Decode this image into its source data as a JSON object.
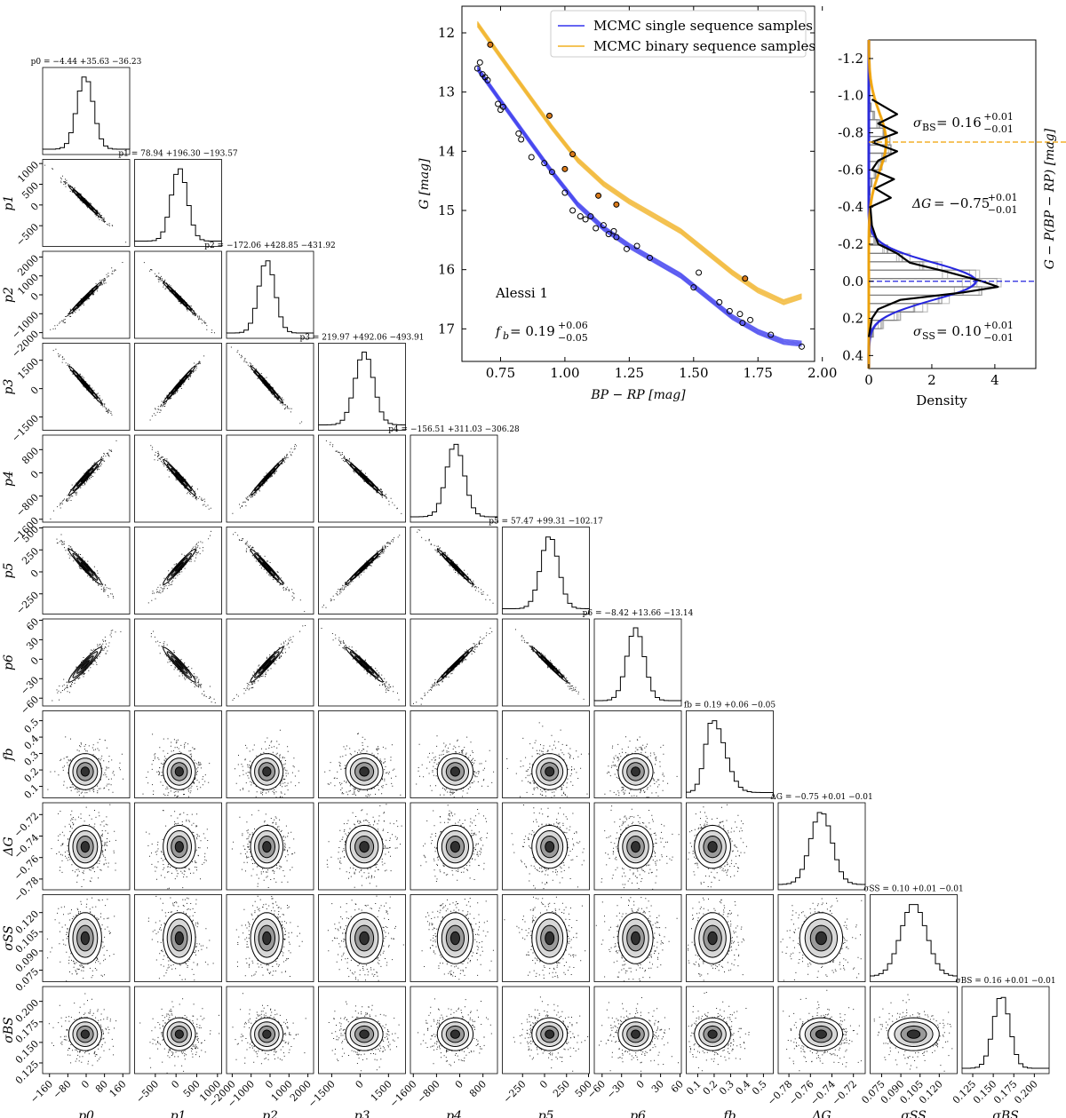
{
  "chart_data": [
    {
      "type": "corner",
      "description_title": "Posterior corner plot",
      "parameters": [
        {
          "key": "p0",
          "label": "p0",
          "title": "p0 = −4.44 +35.63 −36.23",
          "median": -4.44,
          "err_plus": 35.63,
          "err_minus": 36.23,
          "range": [
            -190,
            190
          ],
          "ticks": [
            -160,
            -80,
            0,
            80,
            160
          ],
          "tick_labels": [
            "−160",
            "−80",
            "0",
            "80",
            "160"
          ]
        },
        {
          "key": "p1",
          "label": "p1",
          "title": "p1 = 78.94 +196.30 −193.57",
          "median": 78.94,
          "err_plus": 196.3,
          "err_minus": 193.57,
          "range": [
            -1000,
            1100
          ],
          "ticks": [
            -500,
            0,
            500,
            1000
          ],
          "tick_labels": [
            "−500",
            "0",
            "500",
            "1000"
          ]
        },
        {
          "key": "p2",
          "label": "p2",
          "title": "p2 = −172.06 +428.85 −431.92",
          "median": -172.06,
          "err_plus": 428.85,
          "err_minus": 431.92,
          "range": [
            -2300,
            2300
          ],
          "ticks": [
            -2000,
            -1000,
            0,
            1000,
            2000
          ],
          "tick_labels": [
            "−2000",
            "−1000",
            "0",
            "1000",
            "2000"
          ]
        },
        {
          "key": "p3",
          "label": "p3",
          "title": "p3 = 219.97 +492.06 −493.91",
          "median": 219.97,
          "err_plus": 492.06,
          "err_minus": 493.91,
          "range": [
            -2200,
            2400
          ],
          "ticks": [
            -1500,
            0,
            1500
          ],
          "tick_labels": [
            "−1500",
            "0",
            "1500"
          ]
        },
        {
          "key": "p4",
          "label": "p4",
          "title": "p4 = −156.51 +311.03 −306.28",
          "median": -156.51,
          "err_plus": 311.03,
          "err_minus": 306.28,
          "range": [
            -1700,
            1300
          ],
          "ticks": [
            -1600,
            -800,
            0,
            800
          ],
          "tick_labels": [
            "−1600",
            "−800",
            "0",
            "800"
          ]
        },
        {
          "key": "p5",
          "label": "p5",
          "title": "p5 = 57.47 +99.31 −102.17",
          "median": 57.47,
          "err_plus": 99.31,
          "err_minus": 102.17,
          "range": [
            -480,
            510
          ],
          "ticks": [
            -250,
            0,
            250,
            500
          ],
          "tick_labels": [
            "−250",
            "0",
            "250",
            "500"
          ]
        },
        {
          "key": "p6",
          "label": "p6",
          "title": "p6 = −8.42 +13.66 −13.14",
          "median": -8.42,
          "err_plus": 13.66,
          "err_minus": 13.14,
          "range": [
            -72,
            62
          ],
          "ticks": [
            -60,
            -30,
            0,
            30,
            60
          ],
          "tick_labels": [
            "−60",
            "−30",
            "0",
            "30",
            "60"
          ]
        },
        {
          "key": "fb",
          "label": "fb",
          "title": "fb = 0.19 +0.06 −0.05",
          "median": 0.19,
          "err_plus": 0.06,
          "err_minus": 0.05,
          "range": [
            0.03,
            0.56
          ],
          "ticks": [
            0.1,
            0.2,
            0.3,
            0.4,
            0.5
          ],
          "tick_labels": [
            "0.1",
            "0.2",
            "0.3",
            "0.4",
            "0.5"
          ]
        },
        {
          "key": "dG",
          "label": "ΔG",
          "title": "ΔG = −0.75 +0.01 −0.01",
          "median": -0.75,
          "err_plus": 0.01,
          "err_minus": 0.01,
          "range": [
            -0.79,
            -0.709
          ],
          "ticks": [
            -0.78,
            -0.76,
            -0.74,
            -0.72
          ],
          "tick_labels": [
            "−0.78",
            "−0.76",
            "−0.74",
            "−0.72"
          ]
        },
        {
          "key": "sSS",
          "label": "σSS",
          "title": "σSS = 0.10 +0.01 −0.01",
          "median": 0.1,
          "err_plus": 0.01,
          "err_minus": 0.01,
          "range": [
            0.066,
            0.134
          ],
          "ticks": [
            0.075,
            0.09,
            0.105,
            0.12
          ],
          "tick_labels": [
            "0.075",
            "0.090",
            "0.105",
            "0.120"
          ]
        },
        {
          "key": "sBS",
          "label": "σBS",
          "title": "σBS = 0.16 +0.01 −0.01",
          "median": 0.16,
          "err_plus": 0.01,
          "err_minus": 0.01,
          "range": [
            0.112,
            0.218
          ],
          "ticks": [
            0.125,
            0.15,
            0.175,
            0.2
          ],
          "tick_labels": [
            "0.125",
            "0.150",
            "0.175",
            "0.200"
          ]
        }
      ],
      "correlations": {
        "p0-p1": -0.99,
        "p0-p2": 0.99,
        "p0-p3": -0.99,
        "p0-p4": 0.98,
        "p0-p5": -0.97,
        "p0-p6": 0.95,
        "p1-p2": -0.99,
        "p1-p3": 0.99,
        "p1-p4": -0.98,
        "p1-p5": 0.97,
        "p1-p6": -0.96,
        "p2-p3": -0.99,
        "p2-p4": 0.99,
        "p2-p5": -0.98,
        "p2-p6": 0.97,
        "p3-p4": -0.99,
        "p3-p5": 0.99,
        "p3-p6": -0.98,
        "p4-p5": -0.99,
        "p4-p6": 0.99,
        "p5-p6": -0.99
      }
    },
    {
      "type": "scatter",
      "title": "Alessi 1",
      "annotation": "fb = 0.19 +0.06 −0.05",
      "annotation_main": "f",
      "annotation_sub": "b",
      "annotation_value": " = 0.19",
      "annotation_up": "+0.06",
      "annotation_down": "−0.05",
      "xlabel": "BP − RP [mag]",
      "ylabel": "G [mag]",
      "xlim": [
        0.6,
        1.97
      ],
      "ylim": [
        17.55,
        11.55
      ],
      "xticks": [
        0.75,
        1.0,
        1.25,
        1.5,
        1.75,
        2.0
      ],
      "xtick_labels": [
        "0.75",
        "1.00",
        "1.25",
        "1.50",
        "1.75",
        "2.00"
      ],
      "yticks": [
        12,
        13,
        14,
        15,
        16,
        17
      ],
      "ytick_labels": [
        "12",
        "13",
        "14",
        "15",
        "16",
        "17"
      ],
      "legend": [
        {
          "label": "MCMC single sequence samples",
          "color": "#3333ee"
        },
        {
          "label": "MCMC binary sequence samples",
          "color": "#f0b020"
        }
      ],
      "single_sequence": {
        "x": [
          0.66,
          0.75,
          0.85,
          0.95,
          1.05,
          1.15,
          1.25,
          1.35,
          1.45,
          1.55,
          1.65,
          1.75,
          1.85,
          1.92
        ],
        "y": [
          12.6,
          13.15,
          13.75,
          14.35,
          14.9,
          15.3,
          15.6,
          15.85,
          16.1,
          16.45,
          16.8,
          17.05,
          17.22,
          17.25
        ]
      },
      "binary_sequence": {
        "x": [
          0.66,
          0.75,
          0.85,
          0.95,
          1.05,
          1.15,
          1.25,
          1.35,
          1.45,
          1.55,
          1.65,
          1.75,
          1.85,
          1.92
        ],
        "y": [
          11.85,
          12.4,
          13.0,
          13.6,
          14.15,
          14.55,
          14.85,
          15.1,
          15.35,
          15.7,
          16.05,
          16.35,
          16.55,
          16.45
        ]
      },
      "members_single": {
        "x": [
          0.66,
          0.67,
          0.68,
          0.69,
          0.7,
          0.74,
          0.75,
          0.76,
          0.82,
          0.83,
          0.87,
          0.92,
          0.95,
          1.0,
          1.03,
          1.06,
          1.08,
          1.1,
          1.12,
          1.15,
          1.17,
          1.19,
          1.2,
          1.24,
          1.28,
          1.33,
          1.5,
          1.52,
          1.6,
          1.64,
          1.68,
          1.69,
          1.72,
          1.8,
          1.92
        ],
        "y": [
          12.6,
          12.5,
          12.7,
          12.75,
          12.8,
          13.2,
          13.3,
          13.25,
          13.7,
          13.8,
          14.1,
          14.2,
          14.35,
          14.7,
          15.0,
          15.1,
          15.15,
          15.1,
          15.3,
          15.25,
          15.4,
          15.35,
          15.45,
          15.65,
          15.6,
          15.8,
          16.3,
          16.05,
          16.55,
          16.7,
          16.75,
          16.9,
          16.85,
          17.1,
          17.3
        ]
      },
      "members_binary": {
        "x": [
          0.71,
          0.94,
          1.0,
          1.03,
          1.13,
          1.2,
          1.7
        ],
        "y": [
          12.2,
          13.4,
          14.3,
          14.05,
          14.75,
          14.9,
          16.15
        ]
      }
    },
    {
      "type": "density",
      "xlabel": "Density",
      "ylabel": "G − P(BP − RP) [mag]",
      "xlim": [
        0,
        5.3
      ],
      "ylim": [
        -1.3,
        0.47
      ],
      "xticks": [
        0,
        2,
        4
      ],
      "xtick_labels": [
        "0",
        "2",
        "4"
      ],
      "yticks": [
        -1.2,
        -1.0,
        -0.8,
        -0.6,
        -0.4,
        -0.2,
        0.0,
        0.2,
        0.4
      ],
      "ytick_labels": [
        "-1.2",
        "-1.0",
        "-0.8",
        "-0.6",
        "-0.4",
        "-0.2",
        "0.0",
        "0.2",
        "0.4"
      ],
      "binary_offset_line": -0.75,
      "single_line": 0.0,
      "annotations": [
        {
          "main": "σ",
          "sub": "BS",
          "value": " = 0.16",
          "up": "+0.01",
          "down": "−0.01",
          "text": "σBS = 0.16 +0.01 −0.01"
        },
        {
          "main": "ΔG",
          "sub": "",
          "value": " = −0.75",
          "up": "+0.01",
          "down": "−0.01",
          "text": "ΔG = −0.75 +0.01 −0.01"
        },
        {
          "main": "σ",
          "sub": "SS",
          "value": " = 0.10",
          "up": "+0.01",
          "down": "−0.01",
          "text": "σSS = 0.10 +0.01 −0.01"
        }
      ],
      "single_gaussian": {
        "mean": 0.0,
        "sigma": 0.1,
        "peak": 3.4
      },
      "binary_gaussian": {
        "mean": -0.75,
        "sigma": 0.16,
        "peak": 0.55
      },
      "observed_kde_y": [
        -0.98,
        -0.9,
        -0.85,
        -0.8,
        -0.75,
        -0.7,
        -0.65,
        -0.6,
        -0.55,
        -0.5,
        -0.45,
        -0.4,
        -0.3,
        -0.2,
        -0.15,
        -0.1,
        -0.05,
        0.0,
        0.03,
        0.06,
        0.1,
        0.15,
        0.2,
        0.3
      ],
      "observed_kde_x": [
        0.1,
        0.9,
        0.3,
        0.9,
        0.1,
        0.9,
        0.3,
        0.1,
        0.8,
        0.2,
        0.7,
        0.05,
        0.1,
        0.3,
        0.9,
        1.3,
        2.5,
        3.6,
        4.1,
        3.0,
        1.0,
        0.3,
        0.1,
        0.0
      ]
    }
  ]
}
